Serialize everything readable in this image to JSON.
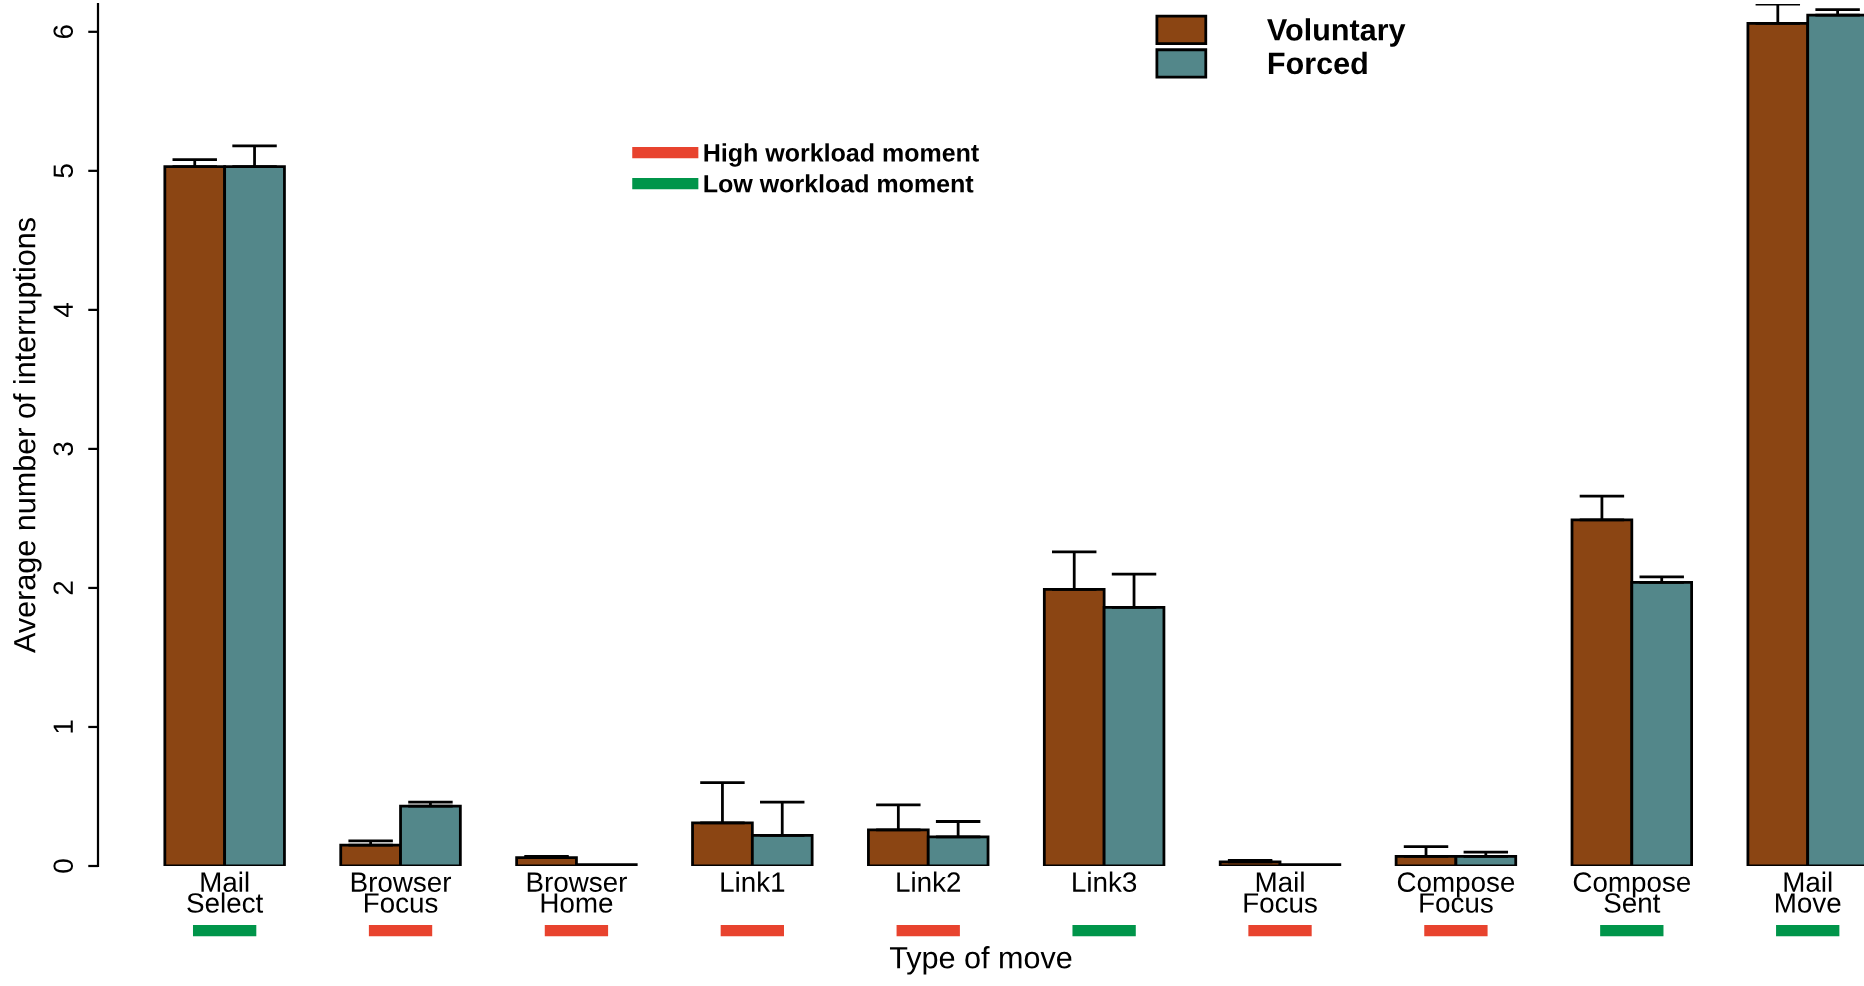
{
  "chart_data": {
    "type": "bar",
    "xlabel": "Type of move",
    "ylabel": "Average number of interruptions",
    "categories": [
      "Mail\nSelect",
      "Browser\nFocus",
      "Browser\nHome",
      "Link1",
      "Link2",
      "Link3",
      "Mail\nFocus",
      "Compose\nFocus",
      "Compose\nSent",
      "Mail\nMove"
    ],
    "series": [
      {
        "name": "Voluntary",
        "color": "#8b4513",
        "values": [
          5.03,
          0.15,
          0.06,
          0.31,
          0.26,
          1.99,
          0.03,
          0.07,
          2.49,
          6.06
        ],
        "errors": [
          [
            5.03,
            5.08
          ],
          [
            0.15,
            0.18
          ],
          [
            0.06,
            0.07
          ],
          [
            0.31,
            0.6
          ],
          [
            0.26,
            0.44
          ],
          [
            1.99,
            2.26
          ],
          [
            0.03,
            0.04
          ],
          [
            0.07,
            0.14
          ],
          [
            2.49,
            2.66
          ],
          [
            6.06,
            6.2
          ]
        ]
      },
      {
        "name": "Forced",
        "color": "#53878a",
        "values": [
          5.03,
          0.43,
          0.01,
          0.22,
          0.21,
          1.86,
          0.01,
          0.07,
          2.04,
          6.12
        ],
        "errors": [
          [
            5.03,
            5.18
          ],
          [
            0.43,
            0.46
          ],
          null,
          [
            0.22,
            0.46
          ],
          [
            0.21,
            0.32
          ],
          [
            1.86,
            2.1
          ],
          null,
          [
            0.07,
            0.1
          ],
          [
            2.04,
            2.08
          ],
          [
            6.12,
            6.16
          ]
        ]
      },
      {
        "name": "High workload moment",
        "type": "other",
        "color": "#e8432e",
        "x": [
          "Browser\nFocus",
          "Browser\nHome",
          "Link1",
          "Link2",
          "Mail\nFocus",
          "Compose\nFocus"
        ],
        "values": [
          null,
          null,
          null,
          null,
          null,
          null
        ]
      },
      {
        "name": "Low workload moment",
        "type": "other",
        "color": "#00954a",
        "x": [
          "Mail\nSelect",
          "Link3",
          "Compose\nSent",
          "Mail\nMove"
        ],
        "values": [
          null,
          null,
          null,
          null
        ]
      }
    ],
    "ylim": [
      0,
      6.2
    ],
    "yticks": [
      0,
      1,
      2,
      3,
      4,
      5,
      6
    ],
    "legend": "top",
    "grid": false
  }
}
